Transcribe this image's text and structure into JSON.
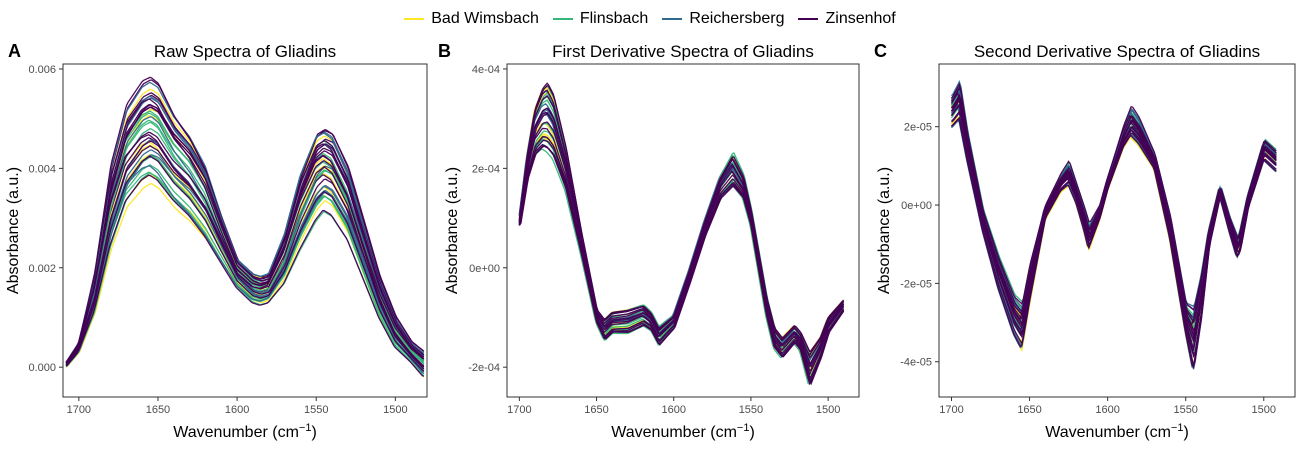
{
  "legend": {
    "items": [
      {
        "label": "Bad Wimsbach",
        "color": "#FDE725"
      },
      {
        "label": "Flinsbach",
        "color": "#35B779"
      },
      {
        "label": "Reichersberg",
        "color": "#31688E"
      },
      {
        "label": "Zinsenhof",
        "color": "#440154"
      }
    ]
  },
  "chart_data": [
    {
      "type": "line",
      "panel_label": "A",
      "title": "Raw Spectra of Gliadins",
      "xlabel": "Wavenumber (cm",
      "xlabel_sup": "−1",
      "xlabel_close": ")",
      "ylabel": "Absorbance (a.u.)",
      "x_reversed": true,
      "xlim": [
        1710,
        1480
      ],
      "ylim": [
        -0.0006,
        0.0061
      ],
      "x_ticks": [
        1700,
        1650,
        1600,
        1550,
        1500
      ],
      "x_tick_labels": [
        "1700",
        "1650",
        "1600",
        "1550",
        "1500"
      ],
      "y_ticks": [
        0,
        0.002,
        0.004,
        0.006
      ],
      "y_tick_labels": [
        "0.000",
        "0.002",
        "0.004",
        "0.006"
      ],
      "series_groups": [
        "Bad Wimsbach",
        "Flinsbach",
        "Reichersberg",
        "Zinsenhof"
      ],
      "curve_count_per_group": [
        8,
        10,
        8,
        16
      ],
      "mean_curve": {
        "x": [
          1708,
          1700,
          1690,
          1680,
          1670,
          1660,
          1655,
          1650,
          1640,
          1630,
          1620,
          1610,
          1600,
          1590,
          1585,
          1580,
          1570,
          1560,
          1550,
          1545,
          1540,
          1530,
          1520,
          1510,
          1500,
          1490,
          1482
        ],
        "y": [
          0.0,
          0.0004,
          0.0015,
          0.0031,
          0.0043,
          0.0049,
          0.005,
          0.0049,
          0.0044,
          0.004,
          0.0034,
          0.0026,
          0.0019,
          0.0016,
          0.00155,
          0.0016,
          0.0022,
          0.0032,
          0.004,
          0.0042,
          0.0041,
          0.0034,
          0.0024,
          0.0014,
          0.0007,
          0.0003,
          0.0001
        ]
      },
      "envelope_low": [
        0.0,
        0.0003,
        0.0011,
        0.0024,
        0.0033,
        0.0037,
        0.0038,
        0.0037,
        0.0033,
        0.003,
        0.0026,
        0.0021,
        0.0016,
        0.0013,
        0.00125,
        0.0013,
        0.0017,
        0.0024,
        0.003,
        0.0032,
        0.0031,
        0.0026,
        0.0018,
        0.001,
        0.0004,
        0.0001,
        -0.0002
      ],
      "envelope_high": [
        0.0001,
        0.0005,
        0.0019,
        0.004,
        0.0052,
        0.0057,
        0.0058,
        0.0057,
        0.0051,
        0.0047,
        0.0041,
        0.0031,
        0.0022,
        0.0019,
        0.00185,
        0.0019,
        0.0027,
        0.0039,
        0.0047,
        0.0048,
        0.0047,
        0.004,
        0.0029,
        0.0018,
        0.001,
        0.0005,
        0.0003
      ]
    },
    {
      "type": "line",
      "panel_label": "B",
      "title": "First Derivative Spectra of Gliadins",
      "xlabel": "Wavenumber (cm",
      "xlabel_sup": "−1",
      "xlabel_close": ")",
      "ylabel": "Absorbance (a.u.)",
      "x_reversed": true,
      "xlim": [
        1708,
        1480
      ],
      "ylim": [
        -0.00026,
        0.00041
      ],
      "x_ticks": [
        1700,
        1650,
        1600,
        1550,
        1500
      ],
      "x_tick_labels": [
        "1700",
        "1650",
        "1600",
        "1550",
        "1500"
      ],
      "y_ticks": [
        -0.0002,
        0,
        0.0002,
        0.0004
      ],
      "y_tick_labels": [
        "-2e-04",
        "0e+00",
        "2e-04",
        "4e-04"
      ],
      "series_groups": [
        "Bad Wimsbach",
        "Flinsbach",
        "Reichersberg",
        "Zinsenhof"
      ],
      "curve_count_per_group": [
        8,
        10,
        8,
        16
      ],
      "mean_curve": {
        "x": [
          1700,
          1695,
          1690,
          1685,
          1682,
          1678,
          1670,
          1660,
          1650,
          1645,
          1640,
          1630,
          1620,
          1615,
          1610,
          1600,
          1590,
          1580,
          1570,
          1562,
          1555,
          1550,
          1540,
          1535,
          1530,
          1522,
          1518,
          1512,
          1505,
          1500,
          1490
        ],
        "y": [
          9e-05,
          0.0002,
          0.000275,
          0.00031,
          0.00032,
          0.0003,
          0.0002,
          5e-05,
          -0.0001,
          -0.00013,
          -0.000115,
          -0.00011,
          -9.5e-05,
          -0.00011,
          -0.00014,
          -0.00011,
          -2e-05,
          8e-05,
          0.00016,
          0.00019,
          0.00016,
          0.0001,
          -8e-05,
          -0.00014,
          -0.00016,
          -0.000135,
          -0.00015,
          -0.000205,
          -0.000165,
          -0.00012,
          -7.5e-05
        ]
      },
      "envelope_low": [
        8.5e-05,
        0.00018,
        0.00023,
        0.000245,
        0.00024,
        0.000225,
        0.00016,
        3e-05,
        -0.00011,
        -0.000145,
        -0.00013,
        -0.00013,
        -0.000115,
        -0.000125,
        -0.000155,
        -0.00012,
        -3e-05,
        6.5e-05,
        0.00014,
        0.000165,
        0.00014,
        8.5e-05,
        -9.5e-05,
        -0.00016,
        -0.00018,
        -0.00015,
        -0.000165,
        -0.000235,
        -0.00018,
        -0.00013,
        -8.5e-05
      ],
      "envelope_high": [
        9.5e-05,
        0.000225,
        0.00032,
        0.00036,
        0.00037,
        0.000345,
        0.00024,
        7e-05,
        -8.5e-05,
        -0.000105,
        -9e-05,
        -8.5e-05,
        -7.5e-05,
        -9e-05,
        -0.00012,
        -9.5e-05,
        -5e-06,
        9.5e-05,
        0.000185,
        0.00023,
        0.000185,
        0.000115,
        -6e-05,
        -0.00012,
        -0.00014,
        -0.000115,
        -0.00013,
        -0.00017,
        -0.00014,
        -0.0001,
        -6.5e-05
      ]
    },
    {
      "type": "line",
      "panel_label": "C",
      "title": "Second Derivative Spectra of Gliadins",
      "xlabel": "Wavenumber (cm",
      "xlabel_sup": "−1",
      "xlabel_close": ")",
      "ylabel": "Absorbance (a.u.)",
      "x_reversed": true,
      "xlim": [
        1708,
        1480
      ],
      "ylim": [
        -4.9e-05,
        3.6e-05
      ],
      "x_ticks": [
        1700,
        1650,
        1600,
        1550,
        1500
      ],
      "x_tick_labels": [
        "1700",
        "1650",
        "1600",
        "1550",
        "1500"
      ],
      "y_ticks": [
        -4e-05,
        -2e-05,
        0,
        2e-05
      ],
      "y_tick_labels": [
        "-4e-05",
        "-2e-05",
        "0e+00",
        "2e-05"
      ],
      "series_groups": [
        "Bad Wimsbach",
        "Flinsbach",
        "Reichersberg",
        "Zinsenhof"
      ],
      "curve_count_per_group": [
        8,
        10,
        8,
        16
      ],
      "mean_curve": {
        "x": [
          1700,
          1695,
          1690,
          1680,
          1670,
          1660,
          1655,
          1650,
          1640,
          1630,
          1625,
          1620,
          1615,
          1612,
          1605,
          1600,
          1590,
          1585,
          1580,
          1570,
          1560,
          1550,
          1545,
          1540,
          1535,
          1528,
          1522,
          1517,
          1515,
          1510,
          1500,
          1492
        ],
        "y": [
          2.3e-05,
          2.5e-05,
          1.5e-05,
          -4e-06,
          -1.8e-05,
          -2.8e-05,
          -3.1e-05,
          -2e-05,
          -2e-06,
          5e-06,
          6e-06,
          2e-06,
          -4e-06,
          -8e-06,
          -2e-06,
          5e-06,
          1.7e-05,
          2.1e-05,
          1.8e-05,
          1.1e-05,
          -6e-06,
          -2.8e-05,
          -3.3e-05,
          -2.2e-05,
          -8e-06,
          3e-06,
          -5e-06,
          -1.1e-05,
          -9e-06,
          1e-06,
          1.4e-05,
          1.1e-05
        ]
      },
      "envelope_low": [
        1.9e-05,
        2.1e-05,
        1.1e-05,
        -7e-06,
        -2.2e-05,
        -3.4e-05,
        -3.8e-05,
        -2.6e-05,
        -4e-06,
        3e-06,
        4.5e-06,
        0.0,
        -7e-06,
        -1.2e-05,
        -4e-06,
        3.5e-06,
        1.4e-05,
        1.7e-05,
        1.5e-05,
        9e-06,
        -9e-06,
        -3.3e-05,
        -4.4e-05,
        -3e-05,
        -1.1e-05,
        2e-06,
        -7e-06,
        -1.4e-05,
        -1.2e-05,
        -1e-06,
        1.1e-05,
        8e-06
      ],
      "envelope_high": [
        2.8e-05,
        3.2e-05,
        1.9e-05,
        -1e-06,
        -1.3e-05,
        -2.3e-05,
        -2.5e-05,
        -1.5e-05,
        0.0,
        8e-06,
        1.1e-05,
        5e-06,
        -1e-06,
        -5e-06,
        0.0,
        7e-06,
        2e-05,
        2.5e-05,
        2.2e-05,
        1.3e-05,
        -3e-06,
        -2.5e-05,
        -2.6e-05,
        -1.7e-05,
        -6e-06,
        5e-06,
        -3e-06,
        -8e-06,
        -6e-06,
        3e-06,
        1.7e-05,
        1.4e-05
      ]
    }
  ]
}
